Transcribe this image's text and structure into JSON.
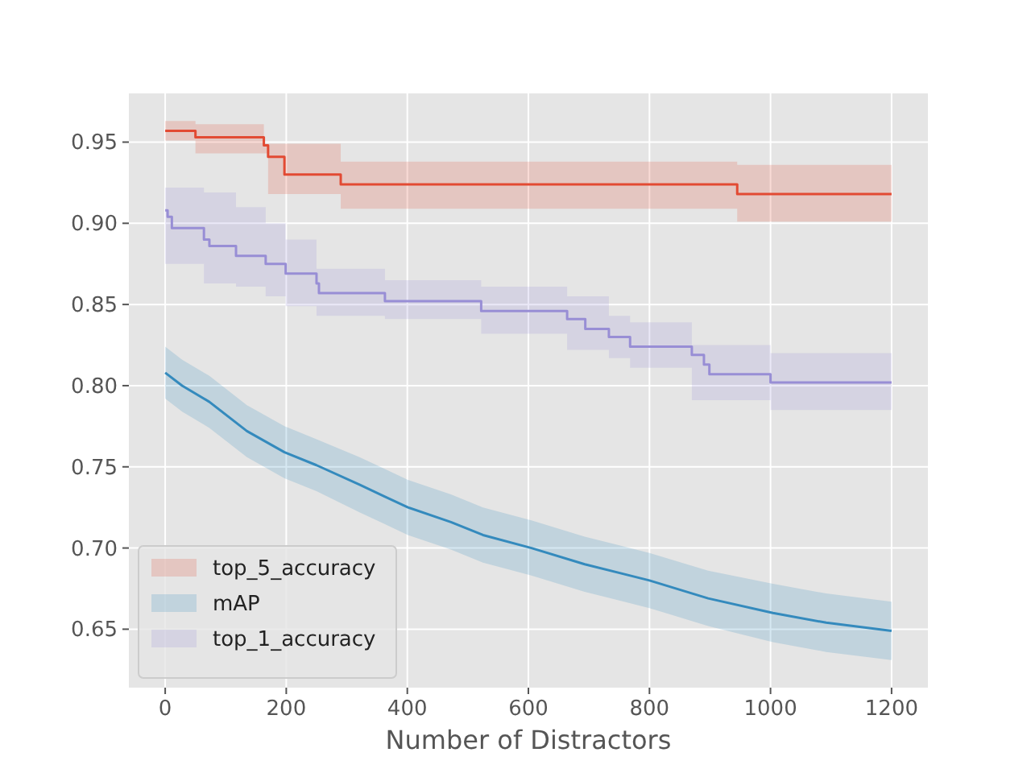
{
  "chart_data": {
    "type": "step",
    "xlabel": "Number of Distractors",
    "xlim": [
      -60,
      1260
    ],
    "ylim": [
      0.614,
      0.98
    ],
    "xticks": [
      0,
      200,
      400,
      600,
      800,
      1000,
      1200
    ],
    "yticks": [
      {
        "value": 0.65,
        "label": "0.65"
      },
      {
        "value": 0.7,
        "label": "0.70"
      },
      {
        "value": 0.75,
        "label": "0.75"
      },
      {
        "value": 0.8,
        "label": "0.80"
      },
      {
        "value": 0.85,
        "label": "0.85"
      },
      {
        "value": 0.9,
        "label": "0.90"
      },
      {
        "value": 0.95,
        "label": "0.95"
      }
    ],
    "grid": true,
    "legend": "bottom left",
    "line_style": "solid",
    "series": [
      {
        "name": "top_5_accuracy",
        "color": "#e24a33",
        "x": [
          0,
          50,
          163,
          170,
          197,
          290,
          945,
          1200
        ],
        "values": [
          0.957,
          0.953,
          0.948,
          0.941,
          0.93,
          0.924,
          0.918,
          0.918
        ],
        "lower": [
          0.951,
          0.943,
          0.943,
          0.918,
          0.918,
          0.909,
          0.901,
          0.901
        ],
        "upper": [
          0.963,
          0.961,
          0.949,
          0.949,
          0.949,
          0.938,
          0.936,
          0.936
        ]
      },
      {
        "name": "mAP",
        "type": "line",
        "color": "#348abd",
        "x": [
          0,
          28,
          73,
          135,
          197,
          250,
          321,
          361,
          401,
          472,
          525,
          605,
          693,
          800,
          897,
          1004,
          1092,
          1200
        ],
        "values": [
          0.808,
          0.8,
          0.79,
          0.772,
          0.759,
          0.751,
          0.739,
          0.732,
          0.725,
          0.716,
          0.708,
          0.7,
          0.69,
          0.68,
          0.669,
          0.66,
          0.654,
          0.649
        ],
        "lower": [
          0.792,
          0.784,
          0.774,
          0.756,
          0.743,
          0.735,
          0.722,
          0.715,
          0.708,
          0.699,
          0.691,
          0.683,
          0.673,
          0.663,
          0.652,
          0.642,
          0.636,
          0.631
        ],
        "upper": [
          0.824,
          0.816,
          0.806,
          0.788,
          0.775,
          0.767,
          0.756,
          0.749,
          0.742,
          0.733,
          0.725,
          0.717,
          0.707,
          0.697,
          0.686,
          0.678,
          0.672,
          0.667
        ]
      },
      {
        "name": "top_1_accuracy",
        "color": "#988ed5",
        "x": [
          0,
          4,
          11,
          64,
          73,
          117,
          166,
          199,
          250,
          254,
          363,
          522,
          664,
          694,
          733,
          768,
          870,
          890,
          899,
          1000,
          1200
        ],
        "values": [
          0.908,
          0.904,
          0.897,
          0.89,
          0.886,
          0.88,
          0.875,
          0.869,
          0.863,
          0.857,
          0.852,
          0.846,
          0.841,
          0.835,
          0.83,
          0.824,
          0.819,
          0.813,
          0.807,
          0.802,
          0.802
        ],
        "lower": [
          0.875,
          0.875,
          0.875,
          0.863,
          0.863,
          0.861,
          0.855,
          0.849,
          0.843,
          0.843,
          0.841,
          0.832,
          0.822,
          0.822,
          0.817,
          0.811,
          0.791,
          0.791,
          0.791,
          0.785,
          0.785
        ],
        "upper": [
          0.922,
          0.922,
          0.922,
          0.919,
          0.919,
          0.91,
          0.9,
          0.89,
          0.872,
          0.872,
          0.865,
          0.861,
          0.855,
          0.855,
          0.843,
          0.839,
          0.825,
          0.825,
          0.825,
          0.82,
          0.82
        ]
      }
    ]
  }
}
